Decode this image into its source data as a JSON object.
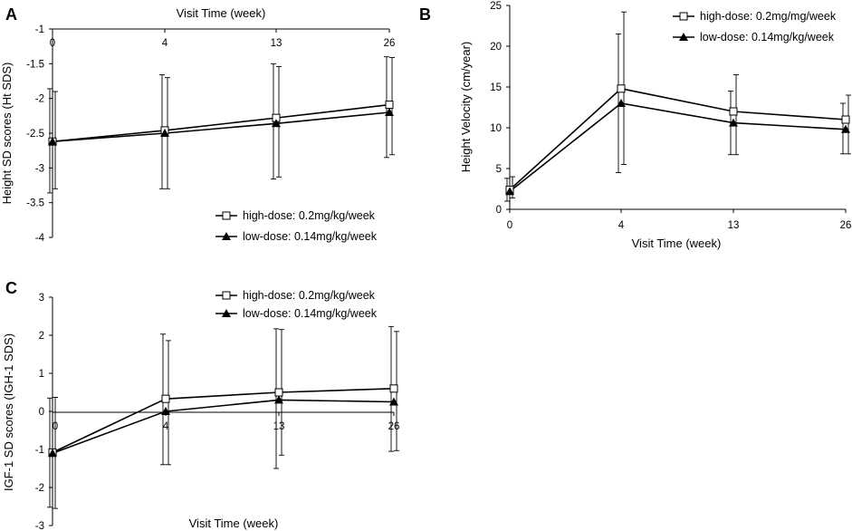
{
  "chart_data": [
    {
      "panel": "A",
      "type": "line",
      "xlabel": "Visit Time (week)",
      "ylabel": "Height SD scores (Ht SDS)",
      "x": [
        0,
        4,
        13,
        26
      ],
      "xticks": [
        "0",
        "4",
        "13",
        "26"
      ],
      "yticks": [
        "-1",
        "-1.5",
        "-2",
        "-2.5",
        "-3",
        "-3.5",
        "-4"
      ],
      "ylim": [
        -4,
        -1
      ],
      "grid": false,
      "legend_position": "bottom-right",
      "series": [
        {
          "name": "high-dose: 0.2mg/kg/week",
          "marker": "open-square",
          "values": [
            -2.62,
            -2.46,
            -2.28,
            -2.09
          ],
          "err_low": [
            0.68,
            0.84,
            0.85,
            0.72
          ],
          "err_high": [
            0.72,
            0.76,
            0.74,
            0.68
          ]
        },
        {
          "name": "low-dose: 0.14mg/kg/week",
          "marker": "filled-triangle",
          "values": [
            -2.62,
            -2.5,
            -2.36,
            -2.2
          ],
          "err_low": [
            0.74,
            0.8,
            0.8,
            0.65
          ],
          "err_high": [
            0.76,
            0.84,
            0.86,
            0.8
          ]
        }
      ]
    },
    {
      "panel": "B",
      "type": "line",
      "xlabel": "Visit Time (week)",
      "ylabel": "Height Velocity (cm/year)",
      "x": [
        0,
        4,
        13,
        26
      ],
      "xticks": [
        "0",
        "4",
        "13",
        "26"
      ],
      "yticks": [
        "0",
        "5",
        "10",
        "15",
        "20",
        "25"
      ],
      "ylim": [
        0,
        25
      ],
      "grid": false,
      "legend_position": "top-right",
      "series": [
        {
          "name": "high-dose: 0.2mg/mg/week",
          "marker": "open-square",
          "values": [
            2.4,
            14.8,
            12.0,
            11.0
          ],
          "err_low": [
            1.0,
            9.3,
            5.3,
            4.2
          ],
          "err_high": [
            1.6,
            9.4,
            4.5,
            3.0
          ]
        },
        {
          "name": "low-dose: 0.14mg/kg/week",
          "marker": "filled-triangle",
          "values": [
            2.2,
            13.0,
            10.6,
            9.8
          ],
          "err_low": [
            1.2,
            8.5,
            3.9,
            3.0
          ],
          "err_high": [
            1.6,
            8.5,
            3.9,
            3.2
          ]
        }
      ]
    },
    {
      "panel": "C",
      "type": "line",
      "xlabel": "Visit Time (week)",
      "ylabel": "IGF-1 SD scores (IGH-1 SDS)",
      "x": [
        0,
        4,
        13,
        26
      ],
      "xticks": [
        "0",
        "4",
        "13",
        "26"
      ],
      "yticks": [
        "3",
        "2",
        "1",
        "0",
        "-1",
        "-2",
        "-3"
      ],
      "ylim": [
        -3,
        3
      ],
      "grid": false,
      "legend_position": "top-right",
      "series": [
        {
          "name": "high-dose: 0.2mg/kg/week",
          "marker": "open-square",
          "values": [
            -1.08,
            0.33,
            0.5,
            0.6
          ],
          "err_low": [
            1.47,
            1.73,
            1.65,
            1.63
          ],
          "err_high": [
            1.45,
            1.53,
            1.65,
            1.5
          ]
        },
        {
          "name": "low-dose: 0.14mg/kg/week",
          "marker": "filled-triangle",
          "values": [
            -1.1,
            0.0,
            0.3,
            0.25
          ],
          "err_low": [
            1.42,
            1.4,
            1.8,
            1.3
          ],
          "err_high": [
            1.45,
            2.03,
            1.87,
            1.98
          ]
        }
      ]
    }
  ]
}
